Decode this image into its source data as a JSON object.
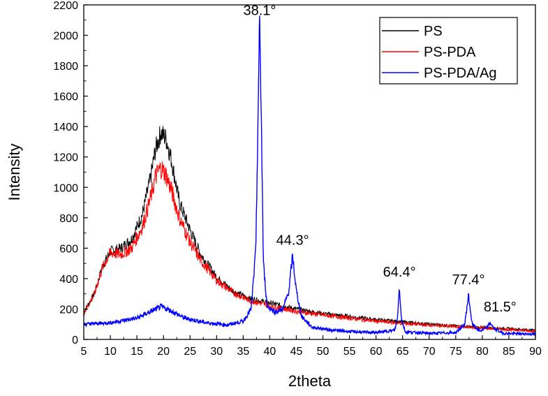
{
  "chart_data": {
    "type": "line",
    "title": "",
    "xlabel": "2theta",
    "ylabel": "Intensity",
    "xlim": [
      5,
      90
    ],
    "ylim": [
      0,
      2200
    ],
    "x_ticks": [
      5,
      10,
      15,
      20,
      25,
      30,
      35,
      40,
      45,
      50,
      55,
      60,
      65,
      70,
      75,
      80,
      85,
      90
    ],
    "y_ticks": [
      0,
      200,
      400,
      600,
      800,
      1000,
      1200,
      1400,
      1600,
      1800,
      2000,
      2200
    ],
    "legend_position": "top-right",
    "series": [
      {
        "name": "PS",
        "color": "#000000",
        "points": [
          [
            5,
            180
          ],
          [
            7,
            300
          ],
          [
            8.5,
            480
          ],
          [
            10,
            580
          ],
          [
            12,
            600
          ],
          [
            14,
            660
          ],
          [
            16,
            820
          ],
          [
            17.5,
            1050
          ],
          [
            18.5,
            1250
          ],
          [
            19.5,
            1360
          ],
          [
            20.5,
            1320
          ],
          [
            21.5,
            1180
          ],
          [
            23,
            900
          ],
          [
            25,
            720
          ],
          [
            27,
            560
          ],
          [
            30,
            410
          ],
          [
            33,
            320
          ],
          [
            36,
            270
          ],
          [
            40,
            240
          ],
          [
            45,
            200
          ],
          [
            50,
            170
          ],
          [
            55,
            150
          ],
          [
            60,
            130
          ],
          [
            65,
            115
          ],
          [
            70,
            100
          ],
          [
            75,
            88
          ],
          [
            80,
            78
          ],
          [
            85,
            70
          ],
          [
            90,
            60
          ]
        ]
      },
      {
        "name": "PS-PDA",
        "color": "#ff0000",
        "points": [
          [
            5,
            170
          ],
          [
            7,
            300
          ],
          [
            8.5,
            470
          ],
          [
            10,
            570
          ],
          [
            12,
            560
          ],
          [
            14,
            600
          ],
          [
            16,
            740
          ],
          [
            17.5,
            920
          ],
          [
            18.5,
            1070
          ],
          [
            19.5,
            1130
          ],
          [
            20.5,
            1080
          ],
          [
            21.5,
            980
          ],
          [
            23,
            800
          ],
          [
            25,
            640
          ],
          [
            27,
            520
          ],
          [
            30,
            390
          ],
          [
            33,
            310
          ],
          [
            36,
            260
          ],
          [
            40,
            220
          ],
          [
            45,
            185
          ],
          [
            50,
            160
          ],
          [
            55,
            140
          ],
          [
            60,
            120
          ],
          [
            65,
            105
          ],
          [
            70,
            95
          ],
          [
            75,
            85
          ],
          [
            80,
            75
          ],
          [
            85,
            65
          ],
          [
            90,
            55
          ]
        ]
      },
      {
        "name": "PS-PDA/Ag",
        "color": "#0000ff",
        "points": [
          [
            5,
            100
          ],
          [
            10,
            110
          ],
          [
            15,
            140
          ],
          [
            18,
            190
          ],
          [
            19.5,
            215
          ],
          [
            21,
            195
          ],
          [
            24,
            140
          ],
          [
            28,
            110
          ],
          [
            32,
            95
          ],
          [
            35,
            120
          ],
          [
            36.5,
            200
          ],
          [
            37.4,
            600
          ],
          [
            37.8,
            1500
          ],
          [
            38.1,
            2070
          ],
          [
            38.4,
            1500
          ],
          [
            38.8,
            500
          ],
          [
            39.5,
            220
          ],
          [
            41,
            180
          ],
          [
            42.5,
            200
          ],
          [
            43.6,
            320
          ],
          [
            44.3,
            550
          ],
          [
            45,
            320
          ],
          [
            46,
            150
          ],
          [
            48,
            80
          ],
          [
            52,
            60
          ],
          [
            56,
            50
          ],
          [
            60,
            45
          ],
          [
            63.5,
            60
          ],
          [
            64,
            130
          ],
          [
            64.4,
            340
          ],
          [
            64.8,
            130
          ],
          [
            65.5,
            50
          ],
          [
            70,
            40
          ],
          [
            75,
            45
          ],
          [
            76.7,
            100
          ],
          [
            77.4,
            290
          ],
          [
            78.1,
            100
          ],
          [
            79.5,
            55
          ],
          [
            80.8,
            75
          ],
          [
            81.5,
            110
          ],
          [
            82.2,
            70
          ],
          [
            84,
            40
          ],
          [
            90,
            35
          ]
        ]
      }
    ],
    "annotations": [
      {
        "text": "38.1°",
        "x": 38.1,
        "y": 2070
      },
      {
        "text": "44.3°",
        "x": 44.3,
        "y": 550
      },
      {
        "text": "64.4°",
        "x": 64.4,
        "y": 340
      },
      {
        "text": "77.4°",
        "x": 77.4,
        "y": 290
      },
      {
        "text": "81.5°",
        "x": 81.5,
        "y": 110
      }
    ]
  }
}
